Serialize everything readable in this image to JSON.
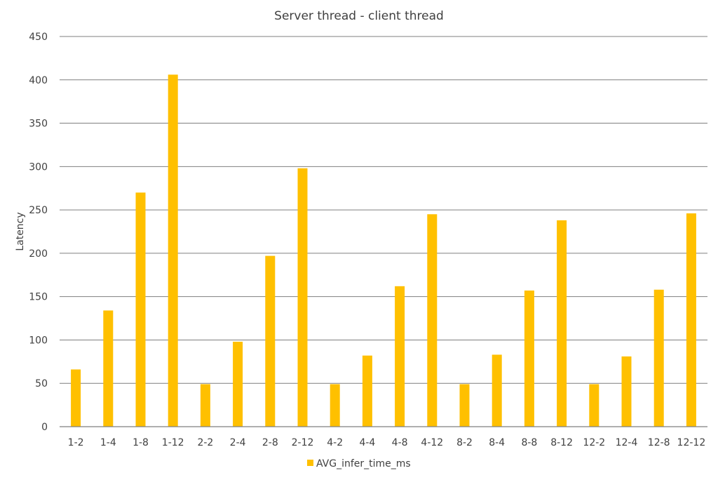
{
  "chart_data": {
    "type": "bar",
    "title": "Server thread - client thread",
    "ylabel": "Latency",
    "xlabel": "",
    "ylim": [
      0,
      450
    ],
    "yticks": [
      0,
      50,
      100,
      150,
      200,
      250,
      300,
      350,
      400,
      450
    ],
    "grid": true,
    "legend_position": "bottom",
    "categories": [
      "1-2",
      "1-4",
      "1-8",
      "1-12",
      "2-2",
      "2-4",
      "2-8",
      "2-12",
      "4-2",
      "4-4",
      "4-8",
      "4-12",
      "8-2",
      "8-4",
      "8-8",
      "8-12",
      "12-2",
      "12-4",
      "12-8",
      "12-12"
    ],
    "series": [
      {
        "name": "AVG_infer_time_ms",
        "color": "#FFC000",
        "values": [
          66,
          134,
          270,
          406,
          49,
          98,
          197,
          298,
          49,
          82,
          162,
          245,
          49,
          83,
          157,
          238,
          49,
          81,
          158,
          246
        ]
      }
    ]
  }
}
